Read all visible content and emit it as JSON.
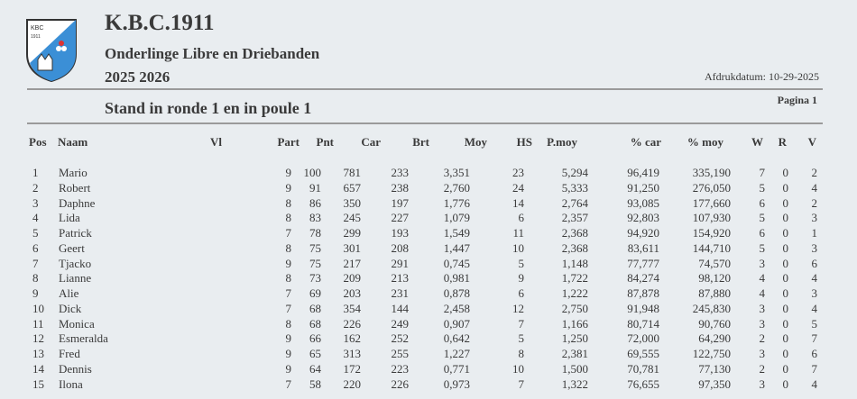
{
  "header": {
    "title": "K.B.C.1911",
    "subtitle": "Onderlinge Libre en Driebanden",
    "season": "2025  2026",
    "print_date": "Afdrukdatum: 10-29-2025",
    "page": "Pagina  1",
    "stand": "Stand in ronde  1 en in poule  1",
    "logo_text": "KBC 1911",
    "logo_color": "#3b8fd6"
  },
  "columns": [
    "Pos",
    "Naam",
    "Vl",
    "Part",
    "Pnt",
    "Car",
    "Brt",
    "Moy",
    "HS",
    "P.moy",
    "% car",
    "% moy",
    "W",
    "R",
    "V"
  ],
  "rows": [
    [
      "1",
      "Mario",
      "",
      "9",
      "100",
      "781",
      "233",
      "3,351",
      "23",
      "5,294",
      "96,419",
      "335,190",
      "7",
      "0",
      "2"
    ],
    [
      "2",
      "Robert",
      "",
      "9",
      "91",
      "657",
      "238",
      "2,760",
      "24",
      "5,333",
      "91,250",
      "276,050",
      "5",
      "0",
      "4"
    ],
    [
      "3",
      "Daphne",
      "",
      "8",
      "86",
      "350",
      "197",
      "1,776",
      "14",
      "2,764",
      "93,085",
      "177,660",
      "6",
      "0",
      "2"
    ],
    [
      "4",
      "Lida",
      "",
      "8",
      "83",
      "245",
      "227",
      "1,079",
      "6",
      "2,357",
      "92,803",
      "107,930",
      "5",
      "0",
      "3"
    ],
    [
      "5",
      "Patrick",
      "",
      "7",
      "78",
      "299",
      "193",
      "1,549",
      "11",
      "2,368",
      "94,920",
      "154,920",
      "6",
      "0",
      "1"
    ],
    [
      "6",
      "Geert",
      "",
      "8",
      "75",
      "301",
      "208",
      "1,447",
      "10",
      "2,368",
      "83,611",
      "144,710",
      "5",
      "0",
      "3"
    ],
    [
      "7",
      "Tjacko",
      "",
      "9",
      "75",
      "217",
      "291",
      "0,745",
      "5",
      "1,148",
      "77,777",
      "74,570",
      "3",
      "0",
      "6"
    ],
    [
      "8",
      "Lianne",
      "",
      "8",
      "73",
      "209",
      "213",
      "0,981",
      "9",
      "1,722",
      "84,274",
      "98,120",
      "4",
      "0",
      "4"
    ],
    [
      "9",
      "Alie",
      "",
      "7",
      "69",
      "203",
      "231",
      "0,878",
      "6",
      "1,222",
      "87,878",
      "87,880",
      "4",
      "0",
      "3"
    ],
    [
      "10",
      "Dick",
      "",
      "7",
      "68",
      "354",
      "144",
      "2,458",
      "12",
      "2,750",
      "91,948",
      "245,830",
      "3",
      "0",
      "4"
    ],
    [
      "11",
      "Monica",
      "",
      "8",
      "68",
      "226",
      "249",
      "0,907",
      "7",
      "1,166",
      "80,714",
      "90,760",
      "3",
      "0",
      "5"
    ],
    [
      "12",
      "Esmeralda",
      "",
      "9",
      "66",
      "162",
      "252",
      "0,642",
      "5",
      "1,250",
      "72,000",
      "64,290",
      "2",
      "0",
      "7"
    ],
    [
      "13",
      "Fred",
      "",
      "9",
      "65",
      "313",
      "255",
      "1,227",
      "8",
      "2,381",
      "69,555",
      "122,750",
      "3",
      "0",
      "6"
    ],
    [
      "14",
      "Dennis",
      "",
      "9",
      "64",
      "172",
      "223",
      "0,771",
      "10",
      "1,500",
      "70,781",
      "77,130",
      "2",
      "0",
      "7"
    ],
    [
      "15",
      "Ilona",
      "",
      "7",
      "58",
      "220",
      "226",
      "0,973",
      "7",
      "1,322",
      "76,655",
      "97,350",
      "3",
      "0",
      "4"
    ]
  ]
}
